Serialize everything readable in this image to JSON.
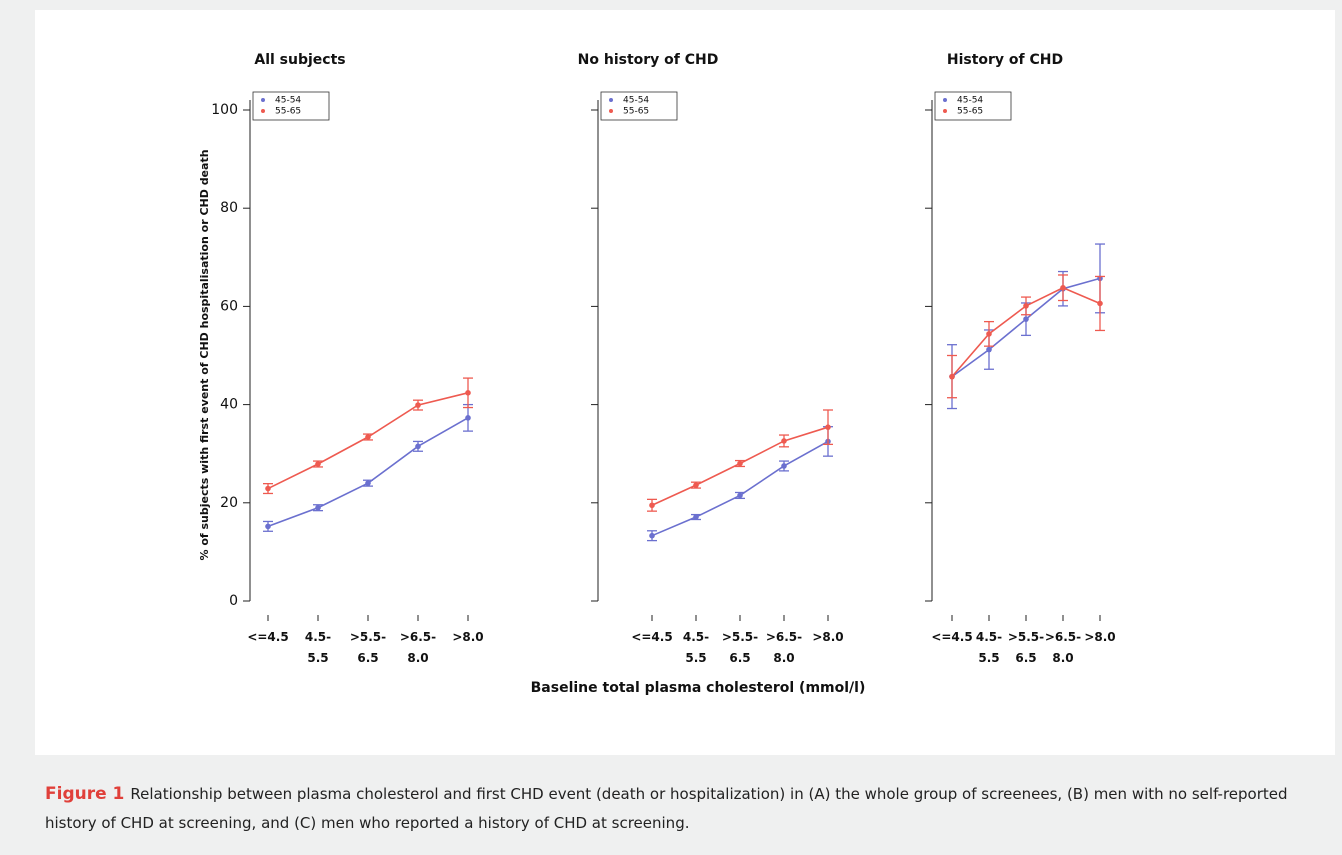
{
  "xlabel": "Baseline total plasma cholesterol (mmol/l)",
  "ylabel": "% of subjects with first event of CHD hospitalisation or CHD death",
  "caption": {
    "label": "Figure 1",
    "text": "Relationship between plasma cholesterol and first CHD event (death or hospitalization) in (A) the whole group of screenees, (B) men with no self-reported history of CHD at screening, and (C) men who reported a history of CHD at screening."
  },
  "chart_data": [
    {
      "type": "line",
      "title": "All subjects",
      "categories": [
        "<=4.5",
        "4.5- 5.5",
        ">5.5- 6.5",
        ">6.5- 8.0",
        ">8.0"
      ],
      "ylim": [
        0,
        100
      ],
      "yticks": [
        0,
        20,
        40,
        60,
        80,
        100
      ],
      "show_ytick_labels": true,
      "legend": "top-left",
      "series": [
        {
          "name": "45-54",
          "color": "#6b70cf",
          "values": [
            15.2,
            19,
            24,
            31.5,
            37.3
          ],
          "errors": [
            1,
            0.6,
            0.6,
            1,
            2.7
          ]
        },
        {
          "name": "55-65",
          "color": "#ee5a50",
          "values": [
            22.9,
            27.9,
            33.4,
            39.9,
            42.4
          ],
          "errors": [
            1,
            0.6,
            0.6,
            1,
            3
          ]
        }
      ]
    },
    {
      "type": "line",
      "title": "No history of CHD",
      "categories": [
        "<=4.5",
        "4.5- 5.5",
        ">5.5- 6.5",
        ">6.5- 8.0",
        ">8.0"
      ],
      "ylim": [
        0,
        100
      ],
      "yticks": [
        0,
        20,
        40,
        60,
        80,
        100
      ],
      "show_ytick_labels": false,
      "legend": "top-left",
      "series": [
        {
          "name": "45-54",
          "color": "#6b70cf",
          "values": [
            13.3,
            17.1,
            21.5,
            27.5,
            32.5
          ],
          "errors": [
            1,
            0.5,
            0.6,
            1,
            3
          ]
        },
        {
          "name": "55-65",
          "color": "#ee5a50",
          "values": [
            19.5,
            23.6,
            28,
            32.6,
            35.4
          ],
          "errors": [
            1.2,
            0.6,
            0.6,
            1.2,
            3.5
          ]
        }
      ]
    },
    {
      "type": "line",
      "title": "History of CHD",
      "categories": [
        "<=4.5",
        "4.5- 5.5",
        ">5.5- 6.5",
        ">6.5- 8.0",
        ">8.0"
      ],
      "ylim": [
        0,
        100
      ],
      "yticks": [
        0,
        20,
        40,
        60,
        80,
        100
      ],
      "show_ytick_labels": false,
      "legend": "top-left",
      "series": [
        {
          "name": "45-54",
          "color": "#6b70cf",
          "values": [
            45.7,
            51.2,
            57.4,
            63.6,
            65.7
          ],
          "errors": [
            6.5,
            4,
            3.3,
            3.5,
            7
          ]
        },
        {
          "name": "55-65",
          "color": "#ee5a50",
          "values": [
            45.7,
            54.4,
            60.1,
            63.8,
            60.6
          ],
          "errors": [
            4.3,
            2.5,
            1.8,
            2.6,
            5.5
          ]
        }
      ]
    }
  ]
}
